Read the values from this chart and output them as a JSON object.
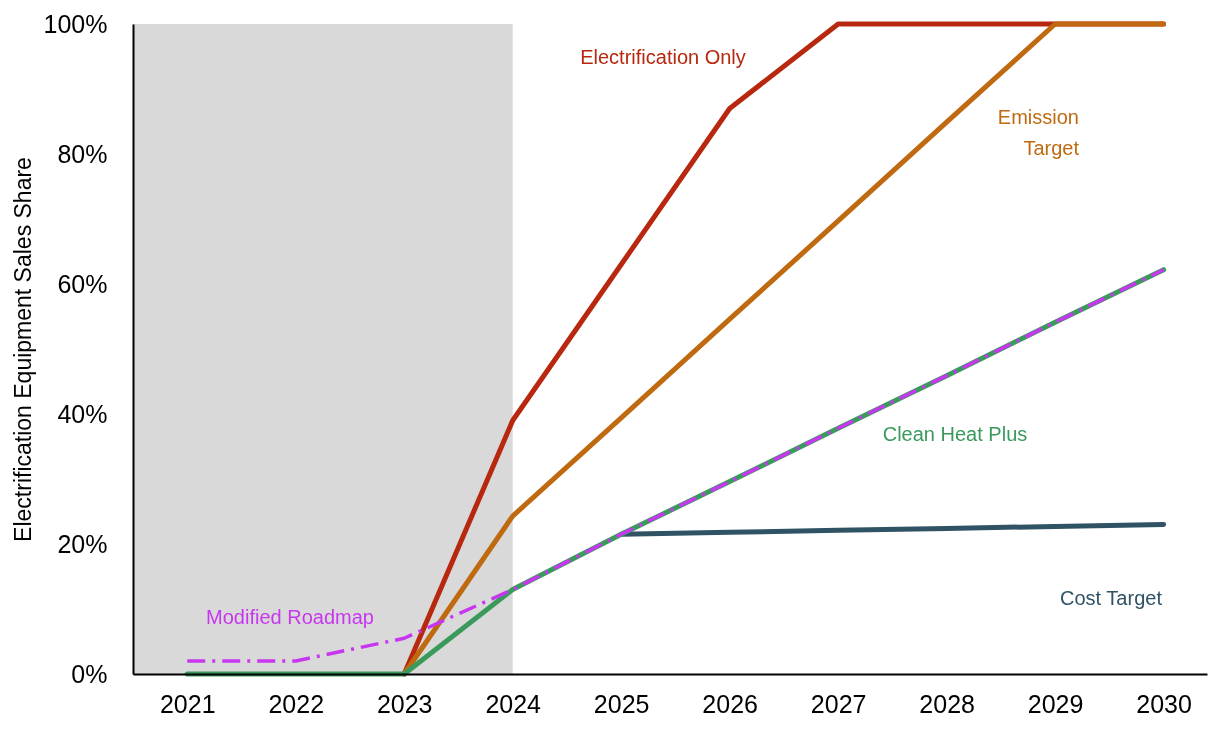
{
  "chart_data": {
    "type": "line",
    "ylabel": "Electrification Equipment Sales Share",
    "x": [
      2021,
      2022,
      2023,
      2024,
      2025,
      2026,
      2027,
      2028,
      2029,
      2030
    ],
    "xlim": [
      2020.5,
      2030.4
    ],
    "xticks": [
      2021,
      2022,
      2023,
      2024,
      2025,
      2026,
      2027,
      2028,
      2029,
      2030
    ],
    "ylim": [
      0,
      100
    ],
    "yticks": [
      {
        "value": 0,
        "label": "0%"
      },
      {
        "value": 20,
        "label": "20%"
      },
      {
        "value": 40,
        "label": "40%"
      },
      {
        "value": 60,
        "label": "60%"
      },
      {
        "value": 80,
        "label": "80%"
      },
      {
        "value": 100,
        "label": "100%"
      }
    ],
    "grid": false,
    "bands": [
      {
        "axis": "x",
        "from": 2020.5,
        "to": 2024,
        "color": "#d9d9d9"
      }
    ],
    "series": [
      {
        "name": "Electrification Only",
        "color": "#b8280e",
        "values": [
          null,
          null,
          0,
          39,
          63,
          87,
          100,
          100,
          100,
          100
        ]
      },
      {
        "name": "Emission Target",
        "color": "#bf6a10",
        "values": [
          null,
          null,
          0,
          24.3,
          39.4,
          54.6,
          69.7,
          84.9,
          100,
          100
        ]
      },
      {
        "name": "Cost Target",
        "color": "#2f5264",
        "values": [
          null,
          null,
          null,
          null,
          21.5,
          21.8,
          22.1,
          22.4,
          22.7,
          23
        ]
      },
      {
        "name": "Clean Heat Plus",
        "color": "#3a9a5c",
        "values": [
          0,
          0,
          0,
          13,
          21.5,
          29.6,
          37.8,
          45.9,
          54.1,
          62.2
        ]
      },
      {
        "name": "Modified Roadmap",
        "color": "#c837f0",
        "line_style": "dashed",
        "values": [
          2,
          2,
          5.5,
          13,
          21.5,
          29.6,
          37.8,
          45.9,
          54.1,
          62.2
        ]
      }
    ]
  }
}
